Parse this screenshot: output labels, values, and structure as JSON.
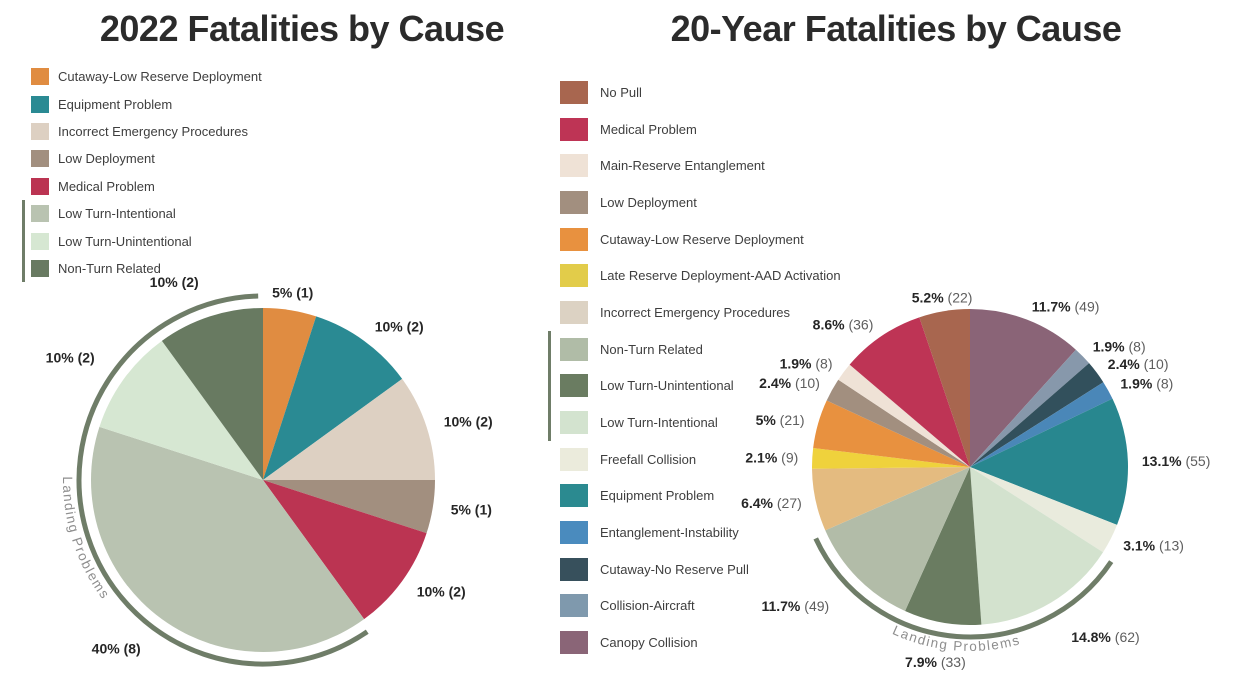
{
  "chart_data": [
    {
      "type": "pie",
      "title": "2022 Fatalities by Cause",
      "group_label": "Landing Problems",
      "legend": [
        {
          "label": "Cutaway-Low Reserve Deployment",
          "color": "#E08C41",
          "group": false
        },
        {
          "label": "Equipment Problem",
          "color": "#2A8A93",
          "group": false
        },
        {
          "label": "Incorrect Emergency Procedures",
          "color": "#DDD0C2",
          "group": false
        },
        {
          "label": "Low Deployment",
          "color": "#A28F7F",
          "group": false
        },
        {
          "label": "Medical Problem",
          "color": "#BB3452",
          "group": false
        },
        {
          "label": "Low Turn-Intentional",
          "color": "#B9C3B1",
          "group": true
        },
        {
          "label": "Low Turn-Unintentional",
          "color": "#D6E7D2",
          "group": true
        },
        {
          "label": "Non-Turn Related",
          "color": "#687A61",
          "group": true
        }
      ],
      "slices": [
        {
          "label": "Cutaway-Low Reserve Deployment",
          "value": 5,
          "pct": "5%",
          "count": "(1)",
          "color": "#E08C41",
          "group": false
        },
        {
          "label": "Equipment Problem",
          "value": 10,
          "pct": "10%",
          "count": "(2)",
          "color": "#2A8A93",
          "group": false
        },
        {
          "label": "Incorrect Emergency Procedures",
          "value": 10,
          "pct": "10%",
          "count": "(2)",
          "color": "#DDD0C2",
          "group": false
        },
        {
          "label": "Low Deployment",
          "value": 5,
          "pct": "5%",
          "count": "(1)",
          "color": "#A28F7F",
          "group": false
        },
        {
          "label": "Medical Problem",
          "value": 10,
          "pct": "10%",
          "count": "(2)",
          "color": "#BB3452",
          "group": false
        },
        {
          "label": "Low Turn-Intentional",
          "value": 40,
          "pct": "40%",
          "count": "(8)",
          "color": "#B9C3B1",
          "group": true
        },
        {
          "label": "Low Turn-Unintentional",
          "value": 10,
          "pct": "10%",
          "count": "(2)",
          "color": "#D6E7D2",
          "group": true
        },
        {
          "label": "Non-Turn Related",
          "value": 10,
          "pct": "10%",
          "count": "(2)",
          "color": "#687A61",
          "group": true
        }
      ]
    },
    {
      "type": "pie",
      "title": "20-Year Fatalities by Cause",
      "group_label": "Landing Problems",
      "legend": [
        {
          "label": "No Pull",
          "color": "#A8664F",
          "group": false
        },
        {
          "label": "Medical Problem",
          "color": "#BE3455",
          "group": false
        },
        {
          "label": "Main-Reserve Entanglement",
          "color": "#EFE2D6",
          "group": false
        },
        {
          "label": "Low Deployment",
          "color": "#A28F7F",
          "group": false
        },
        {
          "label": "Cutaway-Low Reserve Deployment",
          "color": "#E8913F",
          "group": false
        },
        {
          "label": "Late Reserve Deployment-AAD Activation",
          "color": "#E2CC4A",
          "group": false
        },
        {
          "label": "Incorrect Emergency Procedures",
          "color": "#DCD2C3",
          "group": false
        },
        {
          "label": "Non-Turn Related",
          "color": "#B0BCA7",
          "group": true
        },
        {
          "label": "Low Turn-Unintentional",
          "color": "#6A7C61",
          "group": true
        },
        {
          "label": "Low Turn-Intentional",
          "color": "#D3E3CF",
          "group": true
        },
        {
          "label": "Freefall Collision",
          "color": "#EBEBDC",
          "group": false
        },
        {
          "label": "Equipment Problem",
          "color": "#2B8A90",
          "group": false
        },
        {
          "label": "Entanglement-Instability",
          "color": "#4A8BBE",
          "group": false
        },
        {
          "label": "Cutaway-No Reserve Pull",
          "color": "#37505C",
          "group": false
        },
        {
          "label": "Collision-Aircraft",
          "color": "#7F99AD",
          "group": false
        },
        {
          "label": "Canopy Collision",
          "color": "#8A6577",
          "group": false
        }
      ],
      "slices": [
        {
          "label": "Canopy Collision",
          "value": 11.7,
          "pct": "11.7%",
          "count": "(49)",
          "color": "#8A6477",
          "group": false
        },
        {
          "label": "Collision-Aircraft",
          "value": 1.9,
          "pct": "1.9%",
          "count": "(8)",
          "color": "#8798AB",
          "group": false
        },
        {
          "label": "Cutaway-No Reserve Pull",
          "value": 2.4,
          "pct": "2.4%",
          "count": "(10)",
          "color": "#32505C",
          "group": false
        },
        {
          "label": "Entanglement-Instability",
          "value": 1.9,
          "pct": "1.9%",
          "count": "(8)",
          "color": "#4A87B8",
          "group": false
        },
        {
          "label": "Equipment Problem",
          "value": 13.1,
          "pct": "13.1%",
          "count": "(55)",
          "color": "#28878F",
          "group": false
        },
        {
          "label": "Freefall Collision",
          "value": 3.1,
          "pct": "3.1%",
          "count": "(13)",
          "color": "#E9EBDD",
          "group": false
        },
        {
          "label": "Low Turn-Intentional",
          "value": 14.8,
          "pct": "14.8%",
          "count": "(62)",
          "color": "#D3E2CE",
          "group": true
        },
        {
          "label": "Low Turn-Unintentional",
          "value": 7.9,
          "pct": "7.9%",
          "count": "(33)",
          "color": "#6A7C61",
          "group": true
        },
        {
          "label": "Non-Turn Related",
          "value": 11.7,
          "pct": "11.7%",
          "count": "(49)",
          "color": "#B2BCA8",
          "group": true
        },
        {
          "label": "Incorrect Emergency Procedures",
          "value": 6.4,
          "pct": "6.4%",
          "count": "(27)",
          "color": "#E4BB80",
          "group": false
        },
        {
          "label": "Late Reserve Deployment-AAD Activation",
          "value": 2.1,
          "pct": "2.1%",
          "count": "(9)",
          "color": "#EFD23C",
          "group": false
        },
        {
          "label": "Cutaway-Low Reserve Deployment",
          "value": 5,
          "pct": "5%",
          "count": "(21)",
          "color": "#E8913F",
          "group": false
        },
        {
          "label": "Low Deployment",
          "value": 2.4,
          "pct": "2.4%",
          "count": "(10)",
          "color": "#A28F7F",
          "group": false
        },
        {
          "label": "Main-Reserve Entanglement",
          "value": 1.9,
          "pct": "1.9%",
          "count": "(8)",
          "color": "#EFE2D6",
          "group": false
        },
        {
          "label": "Medical Problem",
          "value": 8.6,
          "pct": "8.6%",
          "count": "(36)",
          "color": "#BE3455",
          "group": false
        },
        {
          "label": "No Pull",
          "value": 5.2,
          "pct": "5.2%",
          "count": "(22)",
          "color": "#A8664F",
          "group": false
        }
      ]
    }
  ],
  "colors": {
    "group_bracket": "#6F7D68",
    "group_arc": "#6F7D68",
    "arc_label_gray": "#8E8E8E",
    "label_dark": "#262626",
    "count_gray": "#5E5E5E",
    "title_dark": "#2B2B2B"
  }
}
